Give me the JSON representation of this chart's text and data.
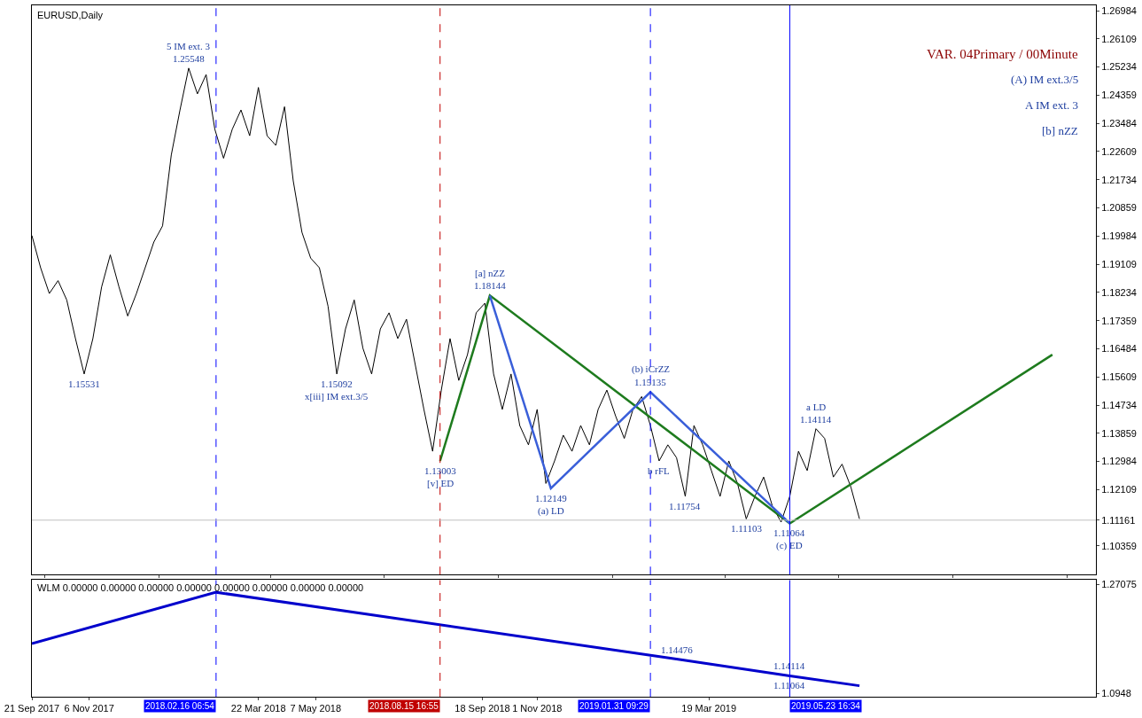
{
  "chart_data": [
    {
      "type": "line",
      "title": "EURUSD,Daily",
      "tick_labels": "y",
      "x": [
        "2017-09-21",
        "2017-09-28",
        "2017-10-05",
        "2017-10-12",
        "2017-10-19",
        "2017-10-26",
        "2017-11-02",
        "2017-11-09",
        "2017-11-16",
        "2017-11-23",
        "2017-11-30",
        "2017-12-07",
        "2017-12-14",
        "2017-12-21",
        "2017-12-28",
        "2018-01-04",
        "2018-01-11",
        "2018-01-18",
        "2018-01-25",
        "2018-02-01",
        "2018-02-08",
        "2018-02-15",
        "2018-02-22",
        "2018-03-01",
        "2018-03-08",
        "2018-03-15",
        "2018-03-22",
        "2018-03-29",
        "2018-04-05",
        "2018-04-12",
        "2018-04-19",
        "2018-04-26",
        "2018-05-03",
        "2018-05-10",
        "2018-05-17",
        "2018-05-24",
        "2018-05-31",
        "2018-06-07",
        "2018-06-14",
        "2018-06-21",
        "2018-06-28",
        "2018-07-05",
        "2018-07-12",
        "2018-07-19",
        "2018-07-26",
        "2018-08-02",
        "2018-08-09",
        "2018-08-16",
        "2018-08-23",
        "2018-08-30",
        "2018-09-06",
        "2018-09-13",
        "2018-09-20",
        "2018-09-27",
        "2018-10-04",
        "2018-10-11",
        "2018-10-18",
        "2018-10-25",
        "2018-11-01",
        "2018-11-08",
        "2018-11-15",
        "2018-11-22",
        "2018-11-29",
        "2018-12-06",
        "2018-12-13",
        "2018-12-20",
        "2018-12-27",
        "2019-01-03",
        "2019-01-10",
        "2019-01-17",
        "2019-01-24",
        "2019-01-31",
        "2019-02-07",
        "2019-02-14",
        "2019-02-21",
        "2019-02-28",
        "2019-03-07",
        "2019-03-14",
        "2019-03-21",
        "2019-03-28",
        "2019-04-04",
        "2019-04-11",
        "2019-04-18",
        "2019-04-25",
        "2019-05-02",
        "2019-05-09",
        "2019-05-16",
        "2019-05-23",
        "2019-05-30",
        "2019-06-06",
        "2019-06-13",
        "2019-06-20",
        "2019-06-27",
        "2019-07-04",
        "2019-07-11",
        "2019-07-18"
      ],
      "series": [
        {
          "color": "#000000",
          "values": [
            1.2,
            1.19,
            1.182,
            1.186,
            1.18,
            1.168,
            1.157,
            1.168,
            1.184,
            1.194,
            1.184,
            1.175,
            1.182,
            1.19,
            1.198,
            1.203,
            1.225,
            1.239,
            1.252,
            1.244,
            1.25,
            1.233,
            1.224,
            1.233,
            1.239,
            1.231,
            1.246,
            1.231,
            1.228,
            1.24,
            1.217,
            1.201,
            1.193,
            1.19,
            1.178,
            1.157,
            1.171,
            1.18,
            1.165,
            1.157,
            1.171,
            1.176,
            1.168,
            1.174,
            1.16,
            1.146,
            1.133,
            1.152,
            1.168,
            1.155,
            1.163,
            1.176,
            1.179,
            1.157,
            1.146,
            1.157,
            1.141,
            1.135,
            1.146,
            1.123,
            1.13,
            1.138,
            1.133,
            1.141,
            1.135,
            1.146,
            1.152,
            1.144,
            1.137,
            1.146,
            1.15,
            1.141,
            1.13,
            1.135,
            1.131,
            1.119,
            1.141,
            1.135,
            1.127,
            1.119,
            1.13,
            1.123,
            1.112,
            1.119,
            1.125,
            1.116,
            1.111,
            1.119,
            1.133,
            1.127,
            1.14,
            1.137,
            1.125,
            1.129,
            1.122,
            1.112
          ]
        },
        {
          "color": "#1e7b1e",
          "x": [
            "2018-08-15",
            "2018-09-24",
            "2019-05-23",
            "2019-12-20"
          ],
          "values": [
            1.13,
            1.1814,
            1.1106,
            1.163
          ]
        },
        {
          "color": "#3a5fd9",
          "x": [
            "2018-09-24",
            "2018-11-12",
            "2019-01-31",
            "2019-05-23"
          ],
          "values": [
            1.1814,
            1.1215,
            1.1514,
            1.1106
          ]
        }
      ],
      "xlim": [
        "2017-09-21",
        "2020-01-24"
      ],
      "ylim": [
        1.0947,
        1.2715
      ],
      "yticks": [
        1.26984,
        1.26109,
        1.25234,
        1.24359,
        1.23484,
        1.22609,
        1.21734,
        1.20859,
        1.19984,
        1.19109,
        1.18234,
        1.17359,
        1.16484,
        1.15609,
        1.14734,
        1.13859,
        1.12984,
        1.12109,
        1.11161,
        1.10359
      ],
      "ref_lines": [
        {
          "axis": "x",
          "value": "2018-02-16",
          "color": "#0000ff",
          "line_style": "dashed"
        },
        {
          "axis": "x",
          "value": "2018-08-15",
          "color": "#c00000",
          "line_style": "dashed"
        },
        {
          "axis": "x",
          "value": "2019-01-31",
          "color": "#0000ff",
          "line_style": "dashed"
        },
        {
          "axis": "x",
          "value": "2019-05-23",
          "color": "#0000ff",
          "line_style": "solid"
        },
        {
          "axis": "y",
          "value": 1.11161,
          "color": "#c0c0c0",
          "line_style": "solid"
        }
      ],
      "annotations": [
        "VAR. 04Primary / 00Minute",
        "(A) IM ext.3/5",
        "A IM ext. 3",
        "[b] nZZ",
        {
          "text": "1.25548",
          "x": "2018-01-25",
          "y": 1.252
        },
        {
          "text": "5 IM ext. 3",
          "x": "2018-01-25",
          "y": 1.252
        },
        {
          "text": "1.15531",
          "x": "2017-11-02",
          "y": 1.157
        },
        {
          "text": "1.15092",
          "x": "2018-05-24",
          "y": 1.157
        },
        {
          "text": "x[iii] IM ext.3/5",
          "x": "2018-05-24",
          "y": 1.157
        },
        {
          "text": "1.13003",
          "x": "2018-08-15",
          "y": 1.13
        },
        {
          "text": "[v] ED",
          "x": "2018-08-15",
          "y": 1.13
        },
        {
          "text": "1.18144",
          "x": "2018-09-24",
          "y": 1.1814
        },
        {
          "text": "[a] nZZ",
          "x": "2018-09-24",
          "y": 1.1814
        },
        {
          "text": "1.12149",
          "x": "2018-11-12",
          "y": 1.1215
        },
        {
          "text": "(a) LD",
          "x": "2018-11-12",
          "y": 1.1215
        },
        {
          "text": "1.15135",
          "x": "2019-01-31",
          "y": 1.1514
        },
        {
          "text": "(b) iCrZZ",
          "x": "2019-01-31",
          "y": 1.1514
        },
        {
          "text": "b rFL",
          "x": "2019-02-07",
          "y": 1.13
        },
        {
          "text": "1.11754",
          "x": "2019-02-28",
          "y": 1.119
        },
        {
          "text": "1.11103",
          "x": "2019-04-18",
          "y": 1.112
        },
        {
          "text": "1.11064",
          "x": "2019-05-23",
          "y": 1.1106
        },
        {
          "text": "(c) ED",
          "x": "2019-05-23",
          "y": 1.1106
        },
        {
          "text": "1.14114",
          "x": "2019-06-13",
          "y": 1.14
        },
        {
          "text": "a LD",
          "x": "2019-06-13",
          "y": 1.14
        }
      ]
    },
    {
      "type": "line",
      "title": "WLM 0.00000 0.00000 0.00000 0.00000 0.00000 0.00000 0.00000 0.00000",
      "x": [
        "2017-09-21",
        "2018-02-16",
        "2019-02-21",
        "2019-05-23",
        "2019-07-18"
      ],
      "series": [
        {
          "color": "#0000cc",
          "values": [
            1.175,
            1.258,
            1.15,
            1.123,
            1.107
          ]
        }
      ],
      "xlim": [
        "2017-09-21",
        "2020-01-24"
      ],
      "xticks": [
        {
          "value": "2017-09-21",
          "label": "21 Sep 2017"
        },
        {
          "value": "2017-11-06",
          "label": "6 Nov 2017"
        },
        {
          "value": "2018-03-22",
          "label": "22 Mar 2018"
        },
        {
          "value": "2018-05-07",
          "label": "7 May 2018"
        },
        {
          "value": "2018-09-18",
          "label": "18 Sep 2018"
        },
        {
          "value": "2018-11-01",
          "label": "1 Nov 2018"
        },
        {
          "value": "2019-03-19",
          "label": "19 Mar 2019"
        }
      ],
      "ylim": [
        1.0893,
        1.2776
      ],
      "yticks": [
        1.27075,
        1.0948
      ],
      "ref_lines": [
        {
          "axis": "x",
          "value": "2018-02-16",
          "label": "2018.02.16 06:54",
          "color": "#0000ff",
          "line_style": "dashed"
        },
        {
          "axis": "x",
          "value": "2018-08-15",
          "label": "2018.08.15 16:55",
          "color": "#c00000",
          "line_style": "dashed"
        },
        {
          "axis": "x",
          "value": "2019-01-31",
          "label": "2019.01.31 09:29",
          "color": "#0000ff",
          "line_style": "dashed"
        },
        {
          "axis": "x",
          "value": "2019-05-23",
          "label": "2019.05.23 16:34",
          "color": "#0000ff",
          "line_style": "solid"
        }
      ],
      "annotations": [
        {
          "text": "1.14476",
          "x": "2019-02-21",
          "y": 1.15
        },
        {
          "text": "1.14114",
          "x": "2019-05-23",
          "y": 1.123
        },
        {
          "text": "1.11064",
          "x": "2019-05-23",
          "y": 1.123
        }
      ]
    }
  ]
}
